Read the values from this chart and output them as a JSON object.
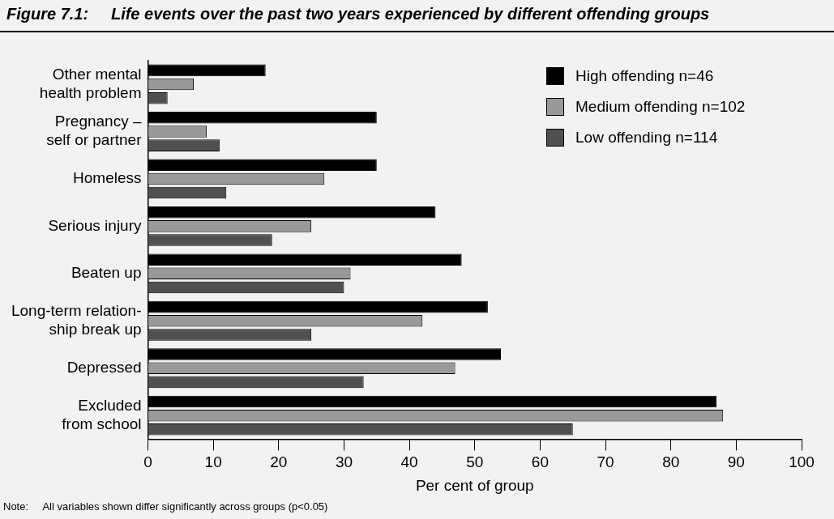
{
  "chart_data": {
    "type": "bar",
    "orientation": "horizontal",
    "title": "Figure 7.1:     Life events over the past two years experienced by different offending groups",
    "categories": [
      "Other mental\nhealth problem",
      "Pregnancy –\nself or partner",
      "Homeless",
      "Serious injury",
      "Beaten up",
      "Long-term relation-\nship break up",
      "Depressed",
      "Excluded\nfrom school"
    ],
    "series": [
      {
        "name": "High offending n=46",
        "color": "#000000",
        "values": [
          18,
          35,
          35,
          44,
          48,
          52,
          54,
          87
        ]
      },
      {
        "name": "Medium offending n=102",
        "color": "#999999",
        "values": [
          7,
          9,
          27,
          25,
          31,
          42,
          47,
          88
        ]
      },
      {
        "name": "Low offending n=114",
        "color": "#505050",
        "values": [
          3,
          11,
          12,
          19,
          30,
          25,
          33,
          65
        ]
      }
    ],
    "xlabel": "Per cent of group",
    "xlim": [
      0,
      100
    ],
    "xticks": [
      0,
      10,
      20,
      30,
      40,
      50,
      60,
      70,
      80,
      90,
      100
    ],
    "grid": false,
    "legend": "top right",
    "annotations": [
      "Note:     All variables shown differ significantly across groups (p<0.05)"
    ]
  }
}
